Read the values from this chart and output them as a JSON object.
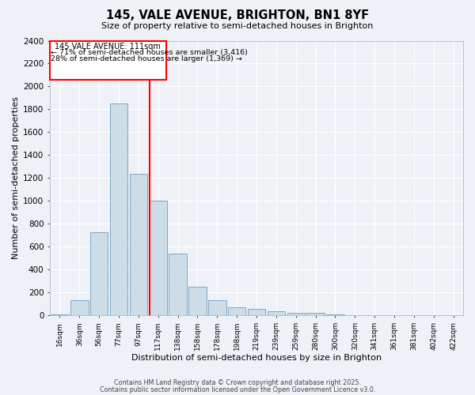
{
  "title": "145, VALE AVENUE, BRIGHTON, BN1 8YF",
  "subtitle": "Size of property relative to semi-detached houses in Brighton",
  "xlabel": "Distribution of semi-detached houses by size in Brighton",
  "ylabel": "Number of semi-detached properties",
  "bar_color": "#ccdde8",
  "bar_edge_color": "#7aa8c8",
  "background_color": "#eef2f7",
  "grid_color": "#ffffff",
  "categories": [
    "16sqm",
    "36sqm",
    "56sqm",
    "77sqm",
    "97sqm",
    "117sqm",
    "138sqm",
    "158sqm",
    "178sqm",
    "198sqm",
    "219sqm",
    "239sqm",
    "259sqm",
    "280sqm",
    "300sqm",
    "320sqm",
    "341sqm",
    "361sqm",
    "381sqm",
    "402sqm",
    "422sqm"
  ],
  "values": [
    10,
    130,
    730,
    1850,
    1240,
    1000,
    540,
    250,
    130,
    70,
    55,
    35,
    25,
    20,
    10,
    5,
    3,
    2,
    1,
    0,
    0
  ],
  "red_line_index": 4.55,
  "annotation_title": "145 VALE AVENUE: 111sqm",
  "annotation_line1": "← 71% of semi-detached houses are smaller (3,416)",
  "annotation_line2": "28% of semi-detached houses are larger (1,369) →",
  "ylim": [
    0,
    2400
  ],
  "yticks": [
    0,
    200,
    400,
    600,
    800,
    1000,
    1200,
    1400,
    1600,
    1800,
    2000,
    2200,
    2400
  ],
  "footer1": "Contains HM Land Registry data © Crown copyright and database right 2025.",
  "footer2": "Contains public sector information licensed under the Open Government Licence v3.0."
}
